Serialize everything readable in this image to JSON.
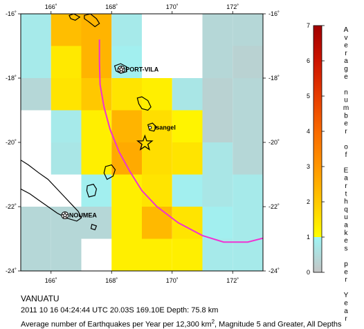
{
  "map": {
    "region_name": "VANUATU",
    "lon_ticks": [
      "166˚",
      "168˚",
      "170˚",
      "172˚"
    ],
    "lat_ticks": [
      "-16˚",
      "-18˚",
      "-20˚",
      "-22˚",
      "-24˚"
    ],
    "lon_tick_values": [
      166,
      168,
      170,
      172
    ],
    "lat_tick_values": [
      -16,
      -18,
      -20,
      -22,
      -24
    ],
    "lon_range": [
      165,
      173
    ],
    "lat_range": [
      -24,
      -16
    ],
    "places": [
      {
        "name": "PORT-VILA",
        "lon": 168.32,
        "lat": -17.73
      },
      {
        "name": "Isangel",
        "lon": 169.27,
        "lat": -19.54
      },
      {
        "name": "NOUMEA",
        "lon": 166.46,
        "lat": -22.27
      }
    ],
    "epicenter": {
      "lon": 169.1,
      "lat": -20.03
    },
    "grid_cell_deg": 1,
    "grid_cells": [
      {
        "lon": 165.5,
        "lat": -16.5,
        "v": 0.8
      },
      {
        "lon": 166.5,
        "lat": -16.5,
        "v": 2.2
      },
      {
        "lon": 167.5,
        "lat": -16.5,
        "v": 2.4
      },
      {
        "lon": 168.5,
        "lat": -16.5,
        "v": 0.8
      },
      {
        "lon": 171.5,
        "lat": -16.5,
        "v": 0.4
      },
      {
        "lon": 172.5,
        "lat": -16.5,
        "v": 0.4
      },
      {
        "lon": 165.5,
        "lat": -17.5,
        "v": 0.8
      },
      {
        "lon": 166.5,
        "lat": -17.5,
        "v": 1.4
      },
      {
        "lon": 167.5,
        "lat": -17.5,
        "v": 2.4
      },
      {
        "lon": 168.5,
        "lat": -17.5,
        "v": 0.9
      },
      {
        "lon": 171.5,
        "lat": -17.5,
        "v": 0.4
      },
      {
        "lon": 172.5,
        "lat": -17.5,
        "v": 0.3
      },
      {
        "lon": 165.5,
        "lat": -18.5,
        "v": 0.4
      },
      {
        "lon": 166.5,
        "lat": -18.5,
        "v": 1.5
      },
      {
        "lon": 167.5,
        "lat": -18.5,
        "v": 2.0
      },
      {
        "lon": 168.5,
        "lat": -18.5,
        "v": 1.5
      },
      {
        "lon": 169.5,
        "lat": -18.5,
        "v": 1.3
      },
      {
        "lon": 170.5,
        "lat": -18.5,
        "v": 0.7
      },
      {
        "lon": 171.5,
        "lat": -18.5,
        "v": 0.3
      },
      {
        "lon": 172.5,
        "lat": -18.5,
        "v": 0.4
      },
      {
        "lon": 166.5,
        "lat": -19.5,
        "v": 0.8
      },
      {
        "lon": 167.5,
        "lat": -19.5,
        "v": 1.3
      },
      {
        "lon": 168.5,
        "lat": -19.5,
        "v": 2.4
      },
      {
        "lon": 169.5,
        "lat": -19.5,
        "v": 1.6
      },
      {
        "lon": 170.5,
        "lat": -19.5,
        "v": 1.2
      },
      {
        "lon": 171.5,
        "lat": -19.5,
        "v": 0.3
      },
      {
        "lon": 172.5,
        "lat": -19.5,
        "v": 0.4
      },
      {
        "lon": 166.5,
        "lat": -20.5,
        "v": 0.7
      },
      {
        "lon": 167.5,
        "lat": -20.5,
        "v": 1.3
      },
      {
        "lon": 168.5,
        "lat": -20.5,
        "v": 2.6
      },
      {
        "lon": 169.5,
        "lat": -20.5,
        "v": 1.6
      },
      {
        "lon": 170.5,
        "lat": -20.5,
        "v": 1.5
      },
      {
        "lon": 171.5,
        "lat": -20.5,
        "v": 0.7
      },
      {
        "lon": 172.5,
        "lat": -20.5,
        "v": 0.4
      },
      {
        "lon": 167.5,
        "lat": -21.5,
        "v": 0.9
      },
      {
        "lon": 168.5,
        "lat": -21.5,
        "v": 1.3
      },
      {
        "lon": 169.5,
        "lat": -21.5,
        "v": 1.5
      },
      {
        "lon": 170.5,
        "lat": -21.5,
        "v": 0.9
      },
      {
        "lon": 171.5,
        "lat": -21.5,
        "v": 0.7
      },
      {
        "lon": 172.5,
        "lat": -21.5,
        "v": 0.8
      },
      {
        "lon": 165.5,
        "lat": -22.5,
        "v": 0.4
      },
      {
        "lon": 166.5,
        "lat": -22.5,
        "v": 0.4
      },
      {
        "lon": 167.5,
        "lat": -22.5,
        "v": 0.4
      },
      {
        "lon": 168.5,
        "lat": -22.5,
        "v": 1.3
      },
      {
        "lon": 169.5,
        "lat": -22.5,
        "v": 2.3
      },
      {
        "lon": 170.5,
        "lat": -22.5,
        "v": 1.5
      },
      {
        "lon": 171.5,
        "lat": -22.5,
        "v": 0.9
      },
      {
        "lon": 172.5,
        "lat": -22.5,
        "v": 0.8
      },
      {
        "lon": 165.5,
        "lat": -23.5,
        "v": 0.4
      },
      {
        "lon": 166.5,
        "lat": -23.5,
        "v": 0.4
      },
      {
        "lon": 168.5,
        "lat": -23.5,
        "v": 1.3
      },
      {
        "lon": 169.5,
        "lat": -23.5,
        "v": 1.3
      },
      {
        "lon": 170.5,
        "lat": -23.5,
        "v": 1.3
      },
      {
        "lon": 171.5,
        "lat": -23.5,
        "v": 0.8
      },
      {
        "lon": 172.5,
        "lat": -23.5,
        "v": 0.8
      },
      {
        "lon": 168.5,
        "lat": -24.5,
        "v": 0.4
      },
      {
        "lon": 170.5,
        "lat": -24.5,
        "v": 0.4
      },
      {
        "lon": 172.5,
        "lat": -24.5,
        "v": 0.4
      }
    ],
    "trench": [
      [
        167.6,
        -16.8
      ],
      [
        167.6,
        -17.5
      ],
      [
        167.62,
        -18.2
      ],
      [
        167.75,
        -18.9
      ],
      [
        167.95,
        -19.6
      ],
      [
        168.25,
        -20.3
      ],
      [
        168.6,
        -20.9
      ],
      [
        169.0,
        -21.5
      ],
      [
        169.5,
        -22.0
      ],
      [
        170.2,
        -22.5
      ],
      [
        171.0,
        -22.9
      ],
      [
        171.7,
        -23.1
      ],
      [
        172.5,
        -23.1
      ],
      [
        173.0,
        -22.98
      ]
    ],
    "islands": [
      [
        [
          166.6,
          -16.05
        ],
        [
          166.75,
          -16.0
        ],
        [
          166.95,
          -16.1
        ],
        [
          166.8,
          -16.2
        ],
        [
          166.65,
          -16.15
        ]
      ],
      [
        [
          167.1,
          -16.05
        ],
        [
          167.3,
          -16.0
        ],
        [
          167.5,
          -16.15
        ],
        [
          167.6,
          -16.3
        ],
        [
          167.45,
          -16.4
        ],
        [
          167.25,
          -16.25
        ],
        [
          167.1,
          -16.15
        ]
      ],
      [
        [
          168.1,
          -17.62
        ],
        [
          168.3,
          -17.55
        ],
        [
          168.5,
          -17.65
        ],
        [
          168.5,
          -17.8
        ],
        [
          168.3,
          -17.85
        ],
        [
          168.15,
          -17.78
        ]
      ],
      [
        [
          168.85,
          -18.62
        ],
        [
          169.0,
          -18.58
        ],
        [
          169.2,
          -18.7
        ],
        [
          169.3,
          -18.9
        ],
        [
          169.2,
          -19.0
        ],
        [
          169.0,
          -18.95
        ],
        [
          168.9,
          -18.8
        ]
      ],
      [
        [
          169.2,
          -19.45
        ],
        [
          169.35,
          -19.4
        ],
        [
          169.48,
          -19.52
        ],
        [
          169.4,
          -19.65
        ],
        [
          169.25,
          -19.62
        ]
      ],
      [
        [
          167.8,
          -20.75
        ],
        [
          168.0,
          -20.7
        ],
        [
          168.12,
          -20.85
        ],
        [
          168.05,
          -21.05
        ],
        [
          167.85,
          -21.15
        ],
        [
          167.75,
          -20.95
        ]
      ],
      [
        [
          167.2,
          -21.35
        ],
        [
          167.4,
          -21.3
        ],
        [
          167.5,
          -21.45
        ],
        [
          167.45,
          -21.65
        ],
        [
          167.25,
          -21.7
        ],
        [
          167.18,
          -21.5
        ]
      ],
      [
        [
          165.0,
          -20.55
        ],
        [
          165.25,
          -20.7
        ],
        [
          165.6,
          -20.95
        ],
        [
          165.9,
          -21.15
        ],
        [
          166.2,
          -21.45
        ],
        [
          166.45,
          -21.7
        ],
        [
          166.7,
          -21.95
        ],
        [
          166.9,
          -22.15
        ],
        [
          167.0,
          -22.35
        ],
        [
          166.85,
          -22.45
        ],
        [
          166.5,
          -22.35
        ],
        [
          166.2,
          -22.2
        ],
        [
          165.9,
          -22.0
        ],
        [
          165.6,
          -21.8
        ],
        [
          165.3,
          -21.6
        ],
        [
          165.0,
          -21.45
        ]
      ],
      [
        [
          167.35,
          -22.55
        ],
        [
          167.5,
          -22.6
        ],
        [
          167.45,
          -22.72
        ],
        [
          167.32,
          -22.68
        ]
      ]
    ]
  },
  "legend": {
    "title": "Average number of Earthquakes per Year",
    "ticks": [
      "0",
      "1",
      "2",
      "3",
      "4",
      "5",
      "6",
      "7"
    ],
    "range": [
      0,
      7
    ],
    "stops": [
      {
        "v": 0,
        "color": "#c4c4c4"
      },
      {
        "v": 1,
        "color": "#9ef4f4"
      },
      {
        "v": 1.001,
        "color": "#ffff00"
      },
      {
        "v": 2,
        "color": "#ffc800"
      },
      {
        "v": 3,
        "color": "#ff9600"
      },
      {
        "v": 4,
        "color": "#f96a00"
      },
      {
        "v": 5,
        "color": "#e63c00"
      },
      {
        "v": 6,
        "color": "#cc1400"
      },
      {
        "v": 7,
        "color": "#a00000"
      }
    ]
  },
  "colors": {
    "trench": "#f032d2",
    "coast": "#000000",
    "frame": "#000000"
  },
  "captions": {
    "region": "VANUATU",
    "event": "2011 10 16 04:24:44 UTC 20.03S 169.10E Depth: 75.8 km",
    "density_prefix": "Average number of Earthquakes per Year per 12,300 km",
    "density_sup": "2",
    "density_suffix": ", Magnitude 5 and Greater, All Depths"
  }
}
